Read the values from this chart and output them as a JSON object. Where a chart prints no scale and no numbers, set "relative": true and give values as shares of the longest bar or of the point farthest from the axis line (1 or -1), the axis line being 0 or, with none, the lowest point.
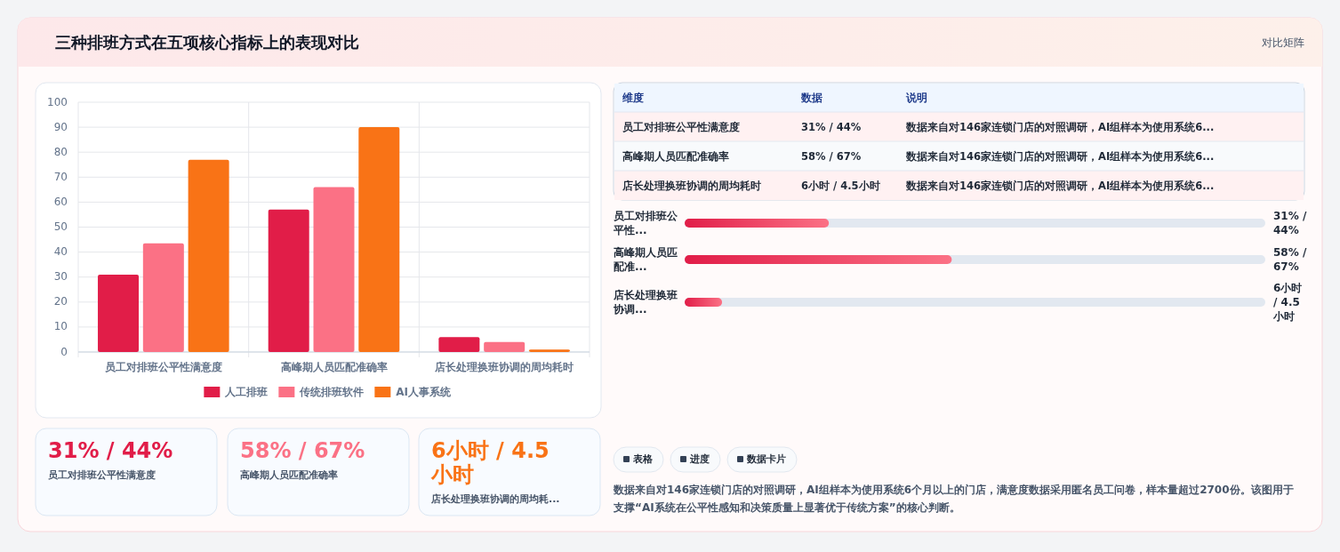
{
  "chart_data": [
    {
      "type": "bar",
      "title": "三种排班方式在五项核心指标上的表现对比",
      "annotations": [
        "对比矩阵"
      ],
      "categories": [
        "员工对排班公平性满意度",
        "高峰期人员匹配准确率",
        "店长处理换班协调的周均耗时"
      ],
      "series": [
        {
          "name": "人工排班",
          "color": "#e11d48",
          "values": [
            31,
            57,
            6
          ]
        },
        {
          "name": "传统排班软件",
          "color": "#fb7185",
          "values": [
            43.5,
            66,
            4
          ]
        },
        {
          "name": "AI人事系统",
          "color": "#f97316",
          "values": [
            77,
            90,
            1
          ]
        }
      ],
      "ylim": [
        0,
        100
      ],
      "yticks": [
        0,
        10,
        20,
        30,
        40,
        50,
        60,
        70,
        80,
        90,
        100
      ],
      "grid": true,
      "legend": "bottom"
    },
    {
      "type": "other",
      "annotations": [
        "维度",
        "数据",
        "说明",
        "员工对排班公平性满意度",
        "31% / 44%",
        "数据来自对146家连锁门店的对照调研，AI组样本为使用系统6...",
        "高峰期人员匹配准确率",
        "58% / 67%",
        "数据来自对146家连锁门店的对照调研，AI组样本为使用系统6...",
        "店长处理换班协调的周均耗时",
        "6小时 / 4.5小时",
        "数据来自对146家连锁门店的对照调研，AI组样本为使用系统6..."
      ]
    },
    {
      "type": "bar",
      "orientation": "horizontal",
      "relative": true,
      "categories": [
        "员工对排班公平性...",
        "高峰期人员匹配准...",
        "店长处理换班协调..."
      ],
      "values": [
        0.54,
        1,
        0.14
      ],
      "color": "#e11d48",
      "annotations": [
        "31% / 44%",
        "58% / 67%",
        "6小时 / 4.5小时"
      ]
    },
    {
      "type": "other",
      "colors": [
        "#e11d48",
        "#fb7185",
        "#f97316"
      ],
      "annotations": [
        "31% / 44%",
        "员工对排班公平性满意度",
        "58% / 67%",
        "高峰期人员匹配准确率",
        "6小时 / 4.5小时",
        "店长处理换班协调的周均耗..."
      ]
    },
    {
      "type": "other",
      "annotations": [
        "表格",
        "进度",
        "数据卡片",
        "数据来自对146家连锁门店的对照调研，AI组样本为使用系统6个月以上的门店，满意度数据采用匿名员工问卷，样本量超过2700份。该图用于支撑“AI系统在公平性感知和决策质量上显著优于传统方案”的核心判断。"
      ]
    }
  ]
}
